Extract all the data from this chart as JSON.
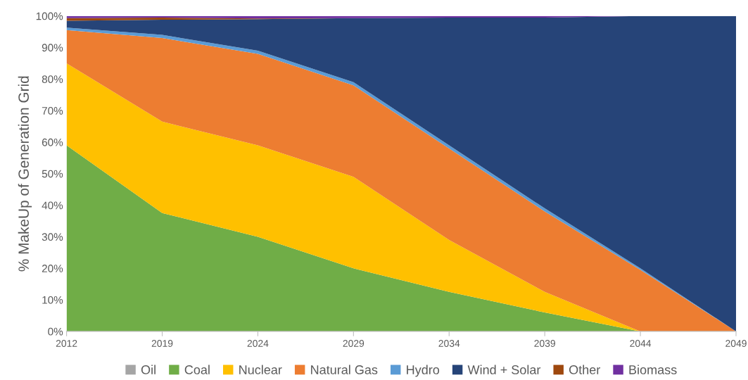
{
  "chart_data": {
    "type": "area",
    "stacked": true,
    "ylabel": "% MakeUp of Generation Grid",
    "categories": [
      "2012",
      "2019",
      "2024",
      "2029",
      "2034",
      "2039",
      "2044",
      "2049"
    ],
    "ylim": [
      0,
      100
    ],
    "yticks": [
      {
        "value": 0,
        "label": "0%"
      },
      {
        "value": 10,
        "label": "10%"
      },
      {
        "value": 20,
        "label": "20%"
      },
      {
        "value": 30,
        "label": "30%"
      },
      {
        "value": 40,
        "label": "40%"
      },
      {
        "value": 50,
        "label": "50%"
      },
      {
        "value": 60,
        "label": "60%"
      },
      {
        "value": 70,
        "label": "70%"
      },
      {
        "value": 80,
        "label": "80%"
      },
      {
        "value": 90,
        "label": "90%"
      },
      {
        "value": 100,
        "label": "100%"
      }
    ],
    "grid": false,
    "legend": "bottom",
    "series": [
      {
        "name": "Oil",
        "color": "#a5a5a5",
        "values": [
          null,
          null,
          null,
          null,
          null,
          null,
          null,
          null
        ]
      },
      {
        "name": "Coal",
        "color": "#70ad47",
        "values": [
          59,
          37.5,
          30,
          20,
          12.5,
          6,
          0,
          0
        ]
      },
      {
        "name": "Nuclear",
        "color": "#ffc000",
        "values": [
          26,
          29,
          29,
          29,
          16.5,
          6.5,
          0,
          0
        ]
      },
      {
        "name": "Natural Gas",
        "color": "#ed7d31",
        "values": [
          10.5,
          26.5,
          29,
          29,
          29,
          25.5,
          19.5,
          0
        ]
      },
      {
        "name": "Hydro",
        "color": "#5b9bd5",
        "values": [
          0.8,
          1,
          1,
          1,
          1,
          1,
          0.5,
          0
        ]
      },
      {
        "name": "Wind + Solar",
        "color": "#264478",
        "values": [
          2.2,
          4.8,
          10,
          20.3,
          40.5,
          60.5,
          80,
          100
        ]
      },
      {
        "name": "Other",
        "color": "#9e480e",
        "values": [
          0.8,
          0.7,
          0.2,
          0,
          0,
          0,
          0,
          0
        ]
      },
      {
        "name": "Biomass",
        "color": "#7030a0",
        "values": [
          0.7,
          0.5,
          0.8,
          0.7,
          0.5,
          0.5,
          0,
          0
        ]
      }
    ]
  }
}
